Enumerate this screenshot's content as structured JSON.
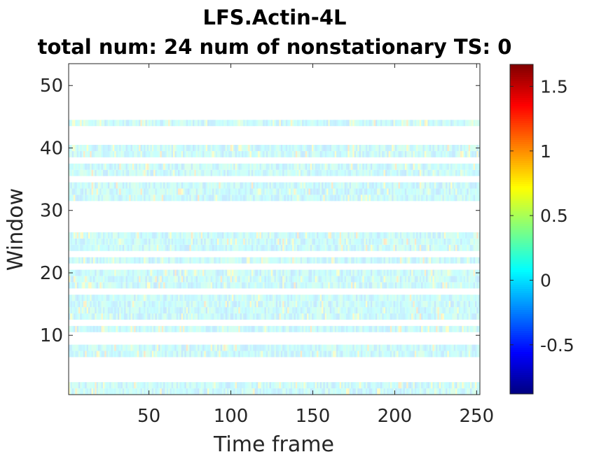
{
  "chart_data": {
    "type": "heatmap",
    "title": "LFS.Actin-4L",
    "subtitle": "total num: 24 num of nonstationary TS: 0",
    "xlabel": "Time frame",
    "ylabel": "Window",
    "xlim": [
      1,
      252
    ],
    "ylim": [
      0.5,
      53.5
    ],
    "xticks": [
      "50",
      "100",
      "150",
      "200",
      "250"
    ],
    "yticks": [
      "10",
      "20",
      "30",
      "40",
      "50"
    ],
    "colormap": "jet",
    "clim": [
      -0.88,
      1.67
    ],
    "colorbar_ticks": [
      "1.5",
      "1",
      "0.5",
      "0",
      "-0.5"
    ],
    "colorbar_tick_values": [
      1.5,
      1,
      0.5,
      0,
      -0.5
    ],
    "time_frames": 252,
    "windows_with_data": [
      1,
      2,
      7,
      8,
      11,
      13,
      14,
      15,
      16,
      18,
      19,
      20,
      22,
      24,
      25,
      26,
      32,
      33,
      34,
      36,
      37,
      39,
      40,
      44
    ],
    "typical_value_range": [
      -0.2,
      1.0
    ],
    "grid": false
  }
}
